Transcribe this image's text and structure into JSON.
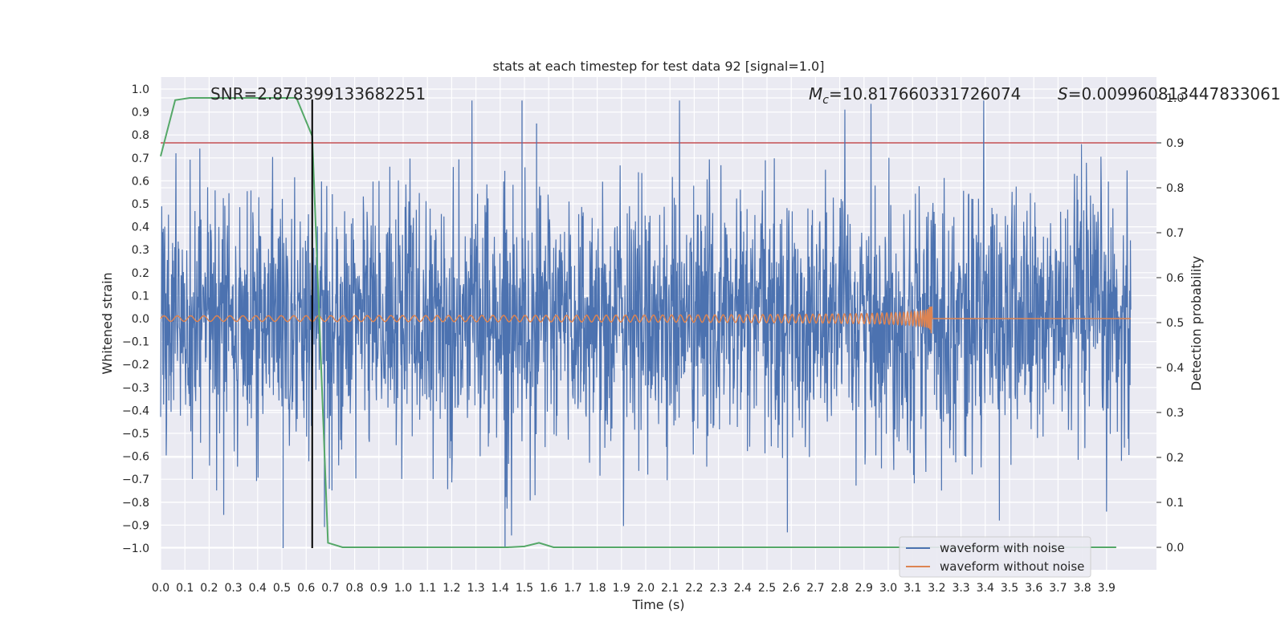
{
  "chart_data": {
    "type": "line",
    "title": "stats at each timestep for test data 92 [signal=1.0]",
    "xlabel": "Time (s)",
    "ylabel": "Whitened strain",
    "y2label": "Detection probability",
    "xlim": [
      0.0,
      4.0
    ],
    "ylim": [
      -1.1,
      1.1
    ],
    "y2lim": [
      -0.05,
      1.0
    ],
    "xticks": [
      "0.0",
      "0.1",
      "0.2",
      "0.3",
      "0.4",
      "0.5",
      "0.6",
      "0.7",
      "0.8",
      "0.9",
      "1.0",
      "1.1",
      "1.2",
      "1.3",
      "1.4",
      "1.5",
      "1.6",
      "1.7",
      "1.8",
      "1.9",
      "2.0",
      "2.1",
      "2.2",
      "2.3",
      "2.4",
      "2.5",
      "2.6",
      "2.7",
      "2.8",
      "2.9",
      "3.0",
      "3.1",
      "3.2",
      "3.3",
      "3.4",
      "3.5",
      "3.6",
      "3.7",
      "3.8",
      "3.9"
    ],
    "yticks": [
      "1.0",
      "0.9",
      "0.8",
      "0.7",
      "0.6",
      "0.5",
      "0.4",
      "0.3",
      "0.2",
      "0.1",
      "0.0",
      "−0.1",
      "−0.2",
      "−0.3",
      "−0.4",
      "−0.5",
      "−0.6",
      "−0.7",
      "−0.8",
      "−0.9",
      "−1.0"
    ],
    "y2ticks": [
      "1.0",
      "0.9",
      "0.8",
      "0.7",
      "0.6",
      "0.5",
      "0.4",
      "0.3",
      "0.2",
      "0.1",
      "0.0"
    ],
    "grid": true,
    "legend_position": "bottom-right",
    "annotations": {
      "snr": "SNR=2.878399133682251",
      "mc": "M_c=10.817660331726074",
      "s": "S=0.009960813447833061"
    },
    "threshold": {
      "value": 0.9,
      "color": "#c44e52"
    },
    "marker_time": 0.625,
    "series": [
      {
        "name": "waveform with noise",
        "color": "#4c72b0",
        "description": "noisy whitened strain, roughly within ±0.95 with occasional spikes to ±1.0"
      },
      {
        "name": "waveform without noise",
        "color": "#dd8452",
        "chirp_end_time": 3.18,
        "peak_amplitude": 0.13
      },
      {
        "axis": "right",
        "color": "#55a868",
        "x": [
          0.0,
          0.06,
          0.12,
          0.18,
          0.25,
          0.31,
          0.37,
          0.43,
          0.5,
          0.56,
          0.625,
          0.69,
          0.75,
          0.81,
          0.87,
          0.94,
          1.0,
          1.1,
          1.2,
          1.3,
          1.43,
          1.5,
          1.56,
          1.62,
          1.7,
          1.8,
          2.0,
          2.5,
          3.0,
          3.5,
          3.94
        ],
        "y": [
          0.87,
          0.995,
          1.0,
          1.0,
          1.0,
          1.0,
          1.0,
          1.0,
          1.0,
          1.0,
          0.915,
          0.01,
          0.0,
          0.0,
          0.0,
          0.0,
          0.0,
          0.0,
          0.0,
          0.0,
          0.0,
          0.002,
          0.01,
          0.0,
          0.0,
          0.0,
          0.0,
          0.0,
          0.0,
          0.0,
          0.0
        ]
      }
    ]
  }
}
